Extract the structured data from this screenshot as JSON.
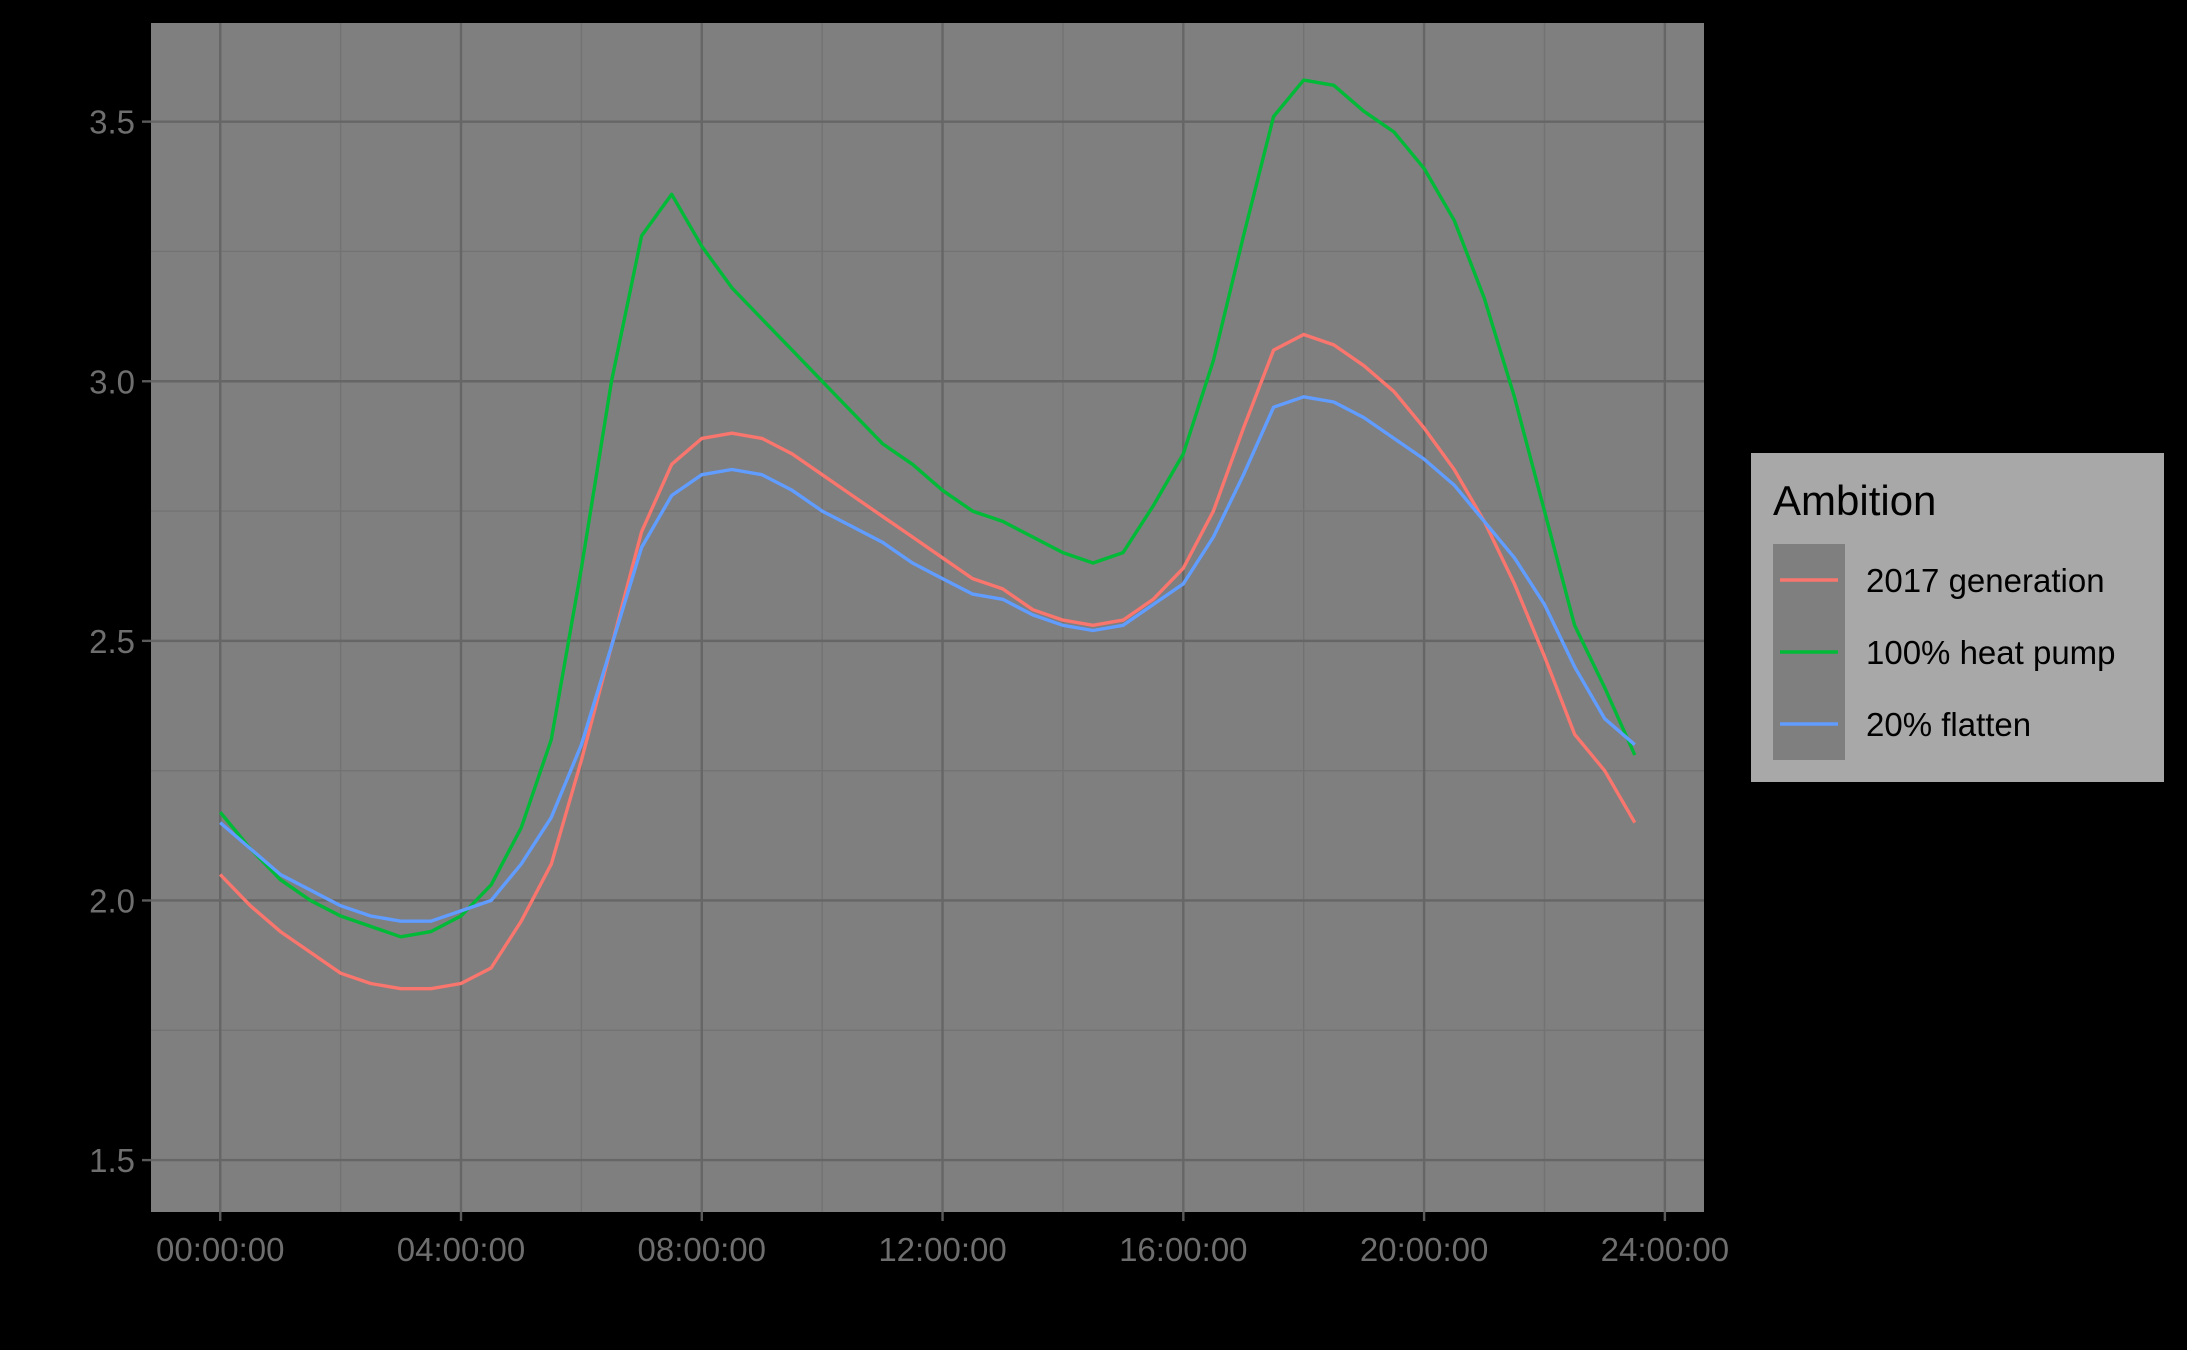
{
  "chart_data": {
    "type": "line",
    "title": "",
    "xlabel": "",
    "ylabel": "",
    "x_ticks": [
      "00:00:00",
      "04:00:00",
      "08:00:00",
      "12:00:00",
      "16:00:00",
      "20:00:00",
      "24:00:00"
    ],
    "y_ticks": [
      "1.5",
      "2.0",
      "2.5",
      "3.0",
      "3.5"
    ],
    "xlim_hours": [
      -1.15,
      24.65
    ],
    "ylim": [
      1.4,
      3.69
    ],
    "grid": true,
    "legend": {
      "title": "Ambition",
      "position": "right"
    },
    "x_hours": [
      0,
      0.5,
      1,
      1.5,
      2,
      2.5,
      3,
      3.5,
      4,
      4.5,
      5,
      5.5,
      6,
      6.5,
      7,
      7.5,
      8,
      8.5,
      9,
      9.5,
      10,
      10.5,
      11,
      11.5,
      12,
      12.5,
      13,
      13.5,
      14,
      14.5,
      15,
      15.5,
      16,
      16.5,
      17,
      17.5,
      18,
      18.5,
      19,
      19.5,
      20,
      20.5,
      21,
      21.5,
      22,
      22.5,
      23,
      23.5
    ],
    "series": [
      {
        "name": "2017 generation",
        "color": "#F8766D",
        "values": [
          2.05,
          1.99,
          1.94,
          1.9,
          1.86,
          1.84,
          1.83,
          1.83,
          1.84,
          1.87,
          1.96,
          2.07,
          2.27,
          2.49,
          2.71,
          2.84,
          2.89,
          2.9,
          2.89,
          2.86,
          2.82,
          2.78,
          2.74,
          2.7,
          2.66,
          2.62,
          2.6,
          2.56,
          2.54,
          2.53,
          2.54,
          2.58,
          2.64,
          2.75,
          2.91,
          3.06,
          3.09,
          3.07,
          3.03,
          2.98,
          2.91,
          2.83,
          2.73,
          2.61,
          2.47,
          2.32,
          2.25,
          2.15
        ]
      },
      {
        "name": "100% heat pump",
        "color": "#00BA38",
        "values": [
          2.17,
          2.1,
          2.04,
          2.0,
          1.97,
          1.95,
          1.93,
          1.94,
          1.97,
          2.03,
          2.14,
          2.31,
          2.64,
          3.0,
          3.28,
          3.36,
          3.26,
          3.18,
          3.12,
          3.06,
          3.0,
          2.94,
          2.88,
          2.84,
          2.79,
          2.75,
          2.73,
          2.7,
          2.67,
          2.65,
          2.67,
          2.76,
          2.86,
          3.04,
          3.28,
          3.51,
          3.58,
          3.57,
          3.52,
          3.48,
          3.41,
          3.31,
          3.16,
          2.97,
          2.75,
          2.53,
          2.41,
          2.28
        ]
      },
      {
        "name": "20% flatten",
        "color": "#619CFF",
        "values": [
          2.15,
          2.1,
          2.05,
          2.02,
          1.99,
          1.97,
          1.96,
          1.96,
          1.98,
          2.0,
          2.07,
          2.16,
          2.3,
          2.49,
          2.68,
          2.78,
          2.82,
          2.83,
          2.82,
          2.79,
          2.75,
          2.72,
          2.69,
          2.65,
          2.62,
          2.59,
          2.58,
          2.55,
          2.53,
          2.52,
          2.53,
          2.57,
          2.61,
          2.7,
          2.82,
          2.95,
          2.97,
          2.96,
          2.93,
          2.89,
          2.85,
          2.8,
          2.73,
          2.66,
          2.57,
          2.45,
          2.35,
          2.3
        ]
      }
    ]
  }
}
